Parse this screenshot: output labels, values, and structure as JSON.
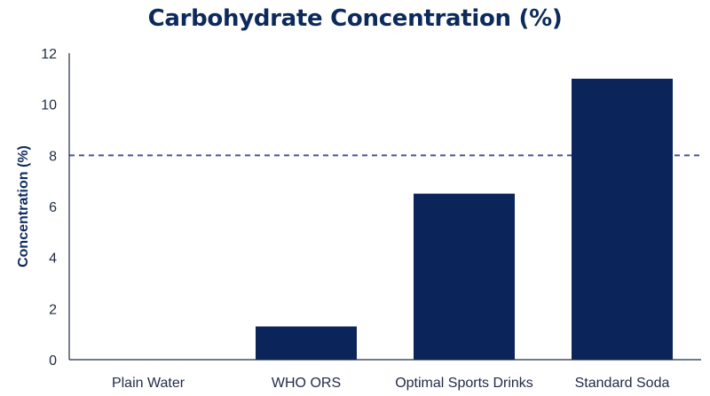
{
  "colors": {
    "bar": "#0b2459",
    "title": "#0d2a5c",
    "axis": "#1f2a44",
    "reference_line": "#4a5590"
  },
  "chart_data": {
    "type": "bar",
    "title": "Carbohydrate Concentration (%)",
    "xlabel": "",
    "ylabel": "Concentration (%)",
    "categories": [
      "Plain Water",
      "WHO ORS",
      "Optimal Sports Drinks",
      "Standard Soda"
    ],
    "values": [
      0,
      1.3,
      6.5,
      11
    ],
    "ylim": [
      0,
      12
    ],
    "yticks": [
      0,
      2,
      4,
      6,
      8,
      10,
      12
    ],
    "reference_line": {
      "y": 8,
      "style": "dashed"
    },
    "grid": false,
    "legend": "none"
  }
}
